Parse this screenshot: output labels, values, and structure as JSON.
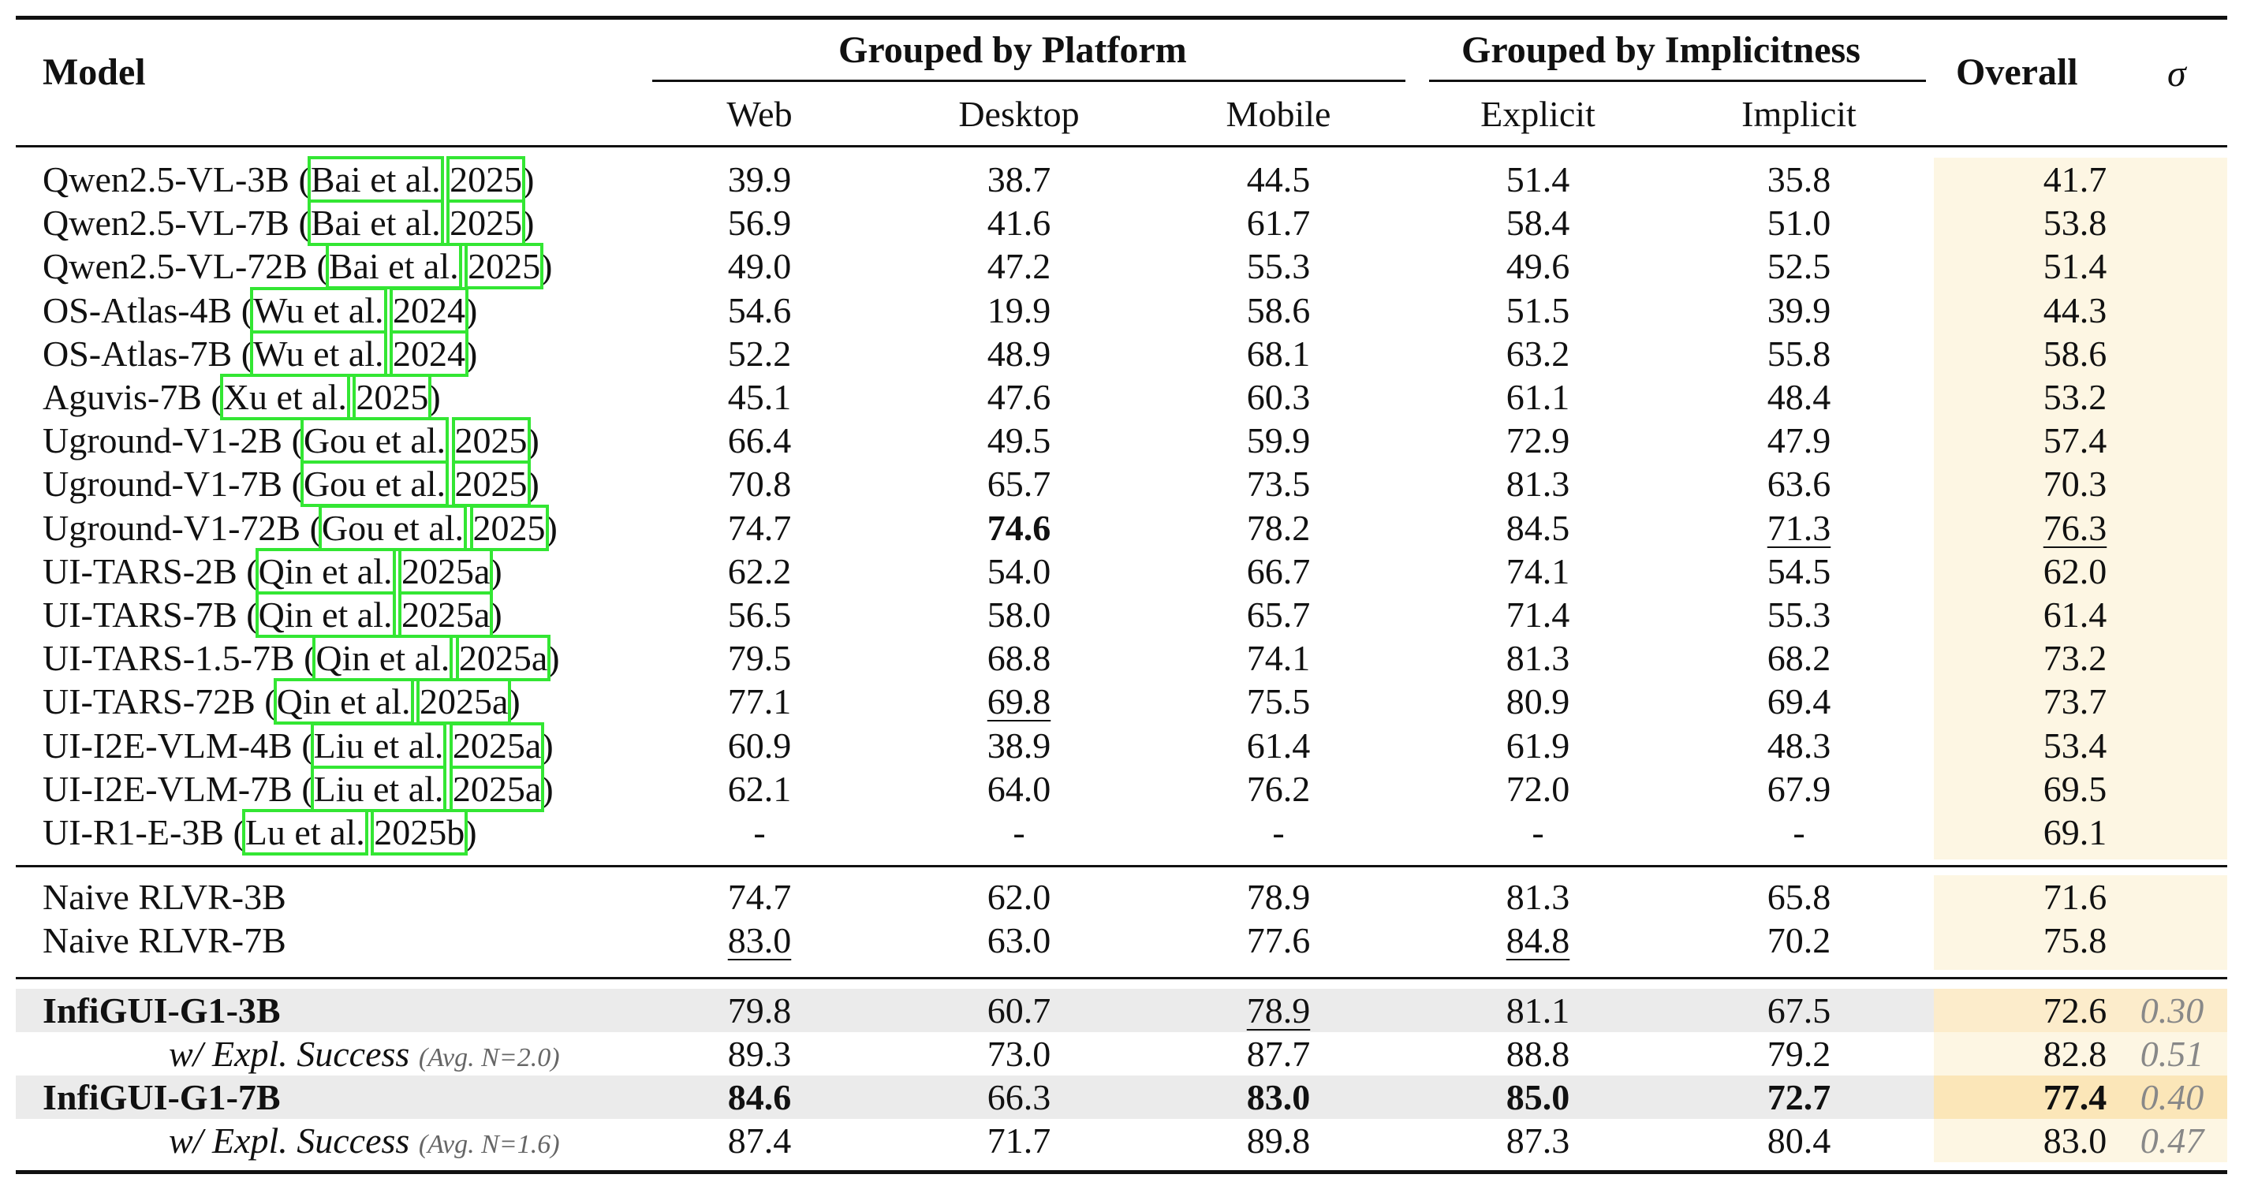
{
  "header": {
    "model": "Model",
    "group_platform": "Grouped by Platform",
    "group_implicitness": "Grouped by Implicitness",
    "overall": "Overall",
    "sigma": "σ",
    "sub": [
      "Web",
      "Desktop",
      "Mobile",
      "Explicit",
      "Implicit"
    ]
  },
  "baselines": [
    {
      "name": "Qwen2.5-VL-3B",
      "cite_author": "Bai et al.",
      "cite_year": "2025",
      "values": [
        "39.9",
        "38.7",
        "44.5",
        "51.4",
        "35.8",
        "41.7"
      ]
    },
    {
      "name": "Qwen2.5-VL-7B",
      "cite_author": "Bai et al.",
      "cite_year": "2025",
      "values": [
        "56.9",
        "41.6",
        "61.7",
        "58.4",
        "51.0",
        "53.8"
      ]
    },
    {
      "name": "Qwen2.5-VL-72B",
      "cite_author": "Bai et al.",
      "cite_year": "2025",
      "values": [
        "49.0",
        "47.2",
        "55.3",
        "49.6",
        "52.5",
        "51.4"
      ]
    },
    {
      "name": "OS-Atlas-4B",
      "cite_author": "Wu et al.",
      "cite_year": "2024",
      "values": [
        "54.6",
        "19.9",
        "58.6",
        "51.5",
        "39.9",
        "44.3"
      ]
    },
    {
      "name": "OS-Atlas-7B",
      "cite_author": "Wu et al.",
      "cite_year": "2024",
      "values": [
        "52.2",
        "48.9",
        "68.1",
        "63.2",
        "55.8",
        "58.6"
      ]
    },
    {
      "name": "Aguvis-7B",
      "cite_author": "Xu et al.",
      "cite_year": "2025",
      "values": [
        "45.1",
        "47.6",
        "60.3",
        "61.1",
        "48.4",
        "53.2"
      ]
    },
    {
      "name": "Uground-V1-2B",
      "cite_author": "Gou et al.",
      "cite_year": "2025",
      "values": [
        "66.4",
        "49.5",
        "59.9",
        "72.9",
        "47.9",
        "57.4"
      ]
    },
    {
      "name": "Uground-V1-7B",
      "cite_author": "Gou et al.",
      "cite_year": "2025",
      "values": [
        "70.8",
        "65.7",
        "73.5",
        "81.3",
        "63.6",
        "70.3"
      ]
    },
    {
      "name": "Uground-V1-72B",
      "cite_author": "Gou et al.",
      "cite_year": "2025",
      "values": [
        "74.7",
        "74.6",
        "78.2",
        "84.5",
        "71.3",
        "76.3"
      ]
    },
    {
      "name": "UI-TARS-2B",
      "cite_author": "Qin et al.",
      "cite_year": "2025a",
      "values": [
        "62.2",
        "54.0",
        "66.7",
        "74.1",
        "54.5",
        "62.0"
      ]
    },
    {
      "name": "UI-TARS-7B",
      "cite_author": "Qin et al.",
      "cite_year": "2025a",
      "values": [
        "56.5",
        "58.0",
        "65.7",
        "71.4",
        "55.3",
        "61.4"
      ]
    },
    {
      "name": "UI-TARS-1.5-7B",
      "cite_author": "Qin et al.",
      "cite_year": "2025a",
      "values": [
        "79.5",
        "68.8",
        "74.1",
        "81.3",
        "68.2",
        "73.2"
      ]
    },
    {
      "name": "UI-TARS-72B",
      "cite_author": "Qin et al.",
      "cite_year": "2025a",
      "values": [
        "77.1",
        "69.8",
        "75.5",
        "80.9",
        "69.4",
        "73.7"
      ]
    },
    {
      "name": "UI-I2E-VLM-4B",
      "cite_author": "Liu et al.",
      "cite_year": "2025a",
      "values": [
        "60.9",
        "38.9",
        "61.4",
        "61.9",
        "48.3",
        "53.4"
      ]
    },
    {
      "name": "UI-I2E-VLM-7B",
      "cite_author": "Liu et al.",
      "cite_year": "2025a",
      "values": [
        "62.1",
        "64.0",
        "76.2",
        "72.0",
        "67.9",
        "69.5"
      ]
    },
    {
      "name": "UI-R1-E-3B",
      "cite_author": "Lu et al.",
      "cite_year": "2025b",
      "values": [
        "-",
        "-",
        "-",
        "-",
        "-",
        "69.1"
      ]
    }
  ],
  "rlvr": [
    {
      "name": "Naive RLVR-3B",
      "values": [
        "74.7",
        "62.0",
        "78.9",
        "81.3",
        "65.8",
        "71.6"
      ]
    },
    {
      "name": "Naive RLVR-7B",
      "values": [
        "83.0",
        "63.0",
        "77.6",
        "84.8",
        "70.2",
        "75.8"
      ]
    }
  ],
  "ours": [
    {
      "name": "InfiGUI-G1-3B",
      "values": [
        "79.8",
        "60.7",
        "78.9",
        "81.1",
        "67.5",
        "72.6"
      ],
      "sigma": "0.30"
    },
    {
      "name": "w/ Expl. Success",
      "note": "(Avg. N=2.0)",
      "values": [
        "89.3",
        "73.0",
        "87.7",
        "88.8",
        "79.2",
        "82.8"
      ],
      "sigma": "0.51"
    },
    {
      "name": "InfiGUI-G1-7B",
      "values": [
        "84.6",
        "66.3",
        "83.0",
        "85.0",
        "72.7",
        "77.4"
      ],
      "sigma": "0.40"
    },
    {
      "name": "w/ Expl. Success",
      "note": "(Avg. N=1.6)",
      "values": [
        "87.4",
        "71.7",
        "89.8",
        "87.3",
        "80.4",
        "83.0"
      ],
      "sigma": "0.47"
    }
  ],
  "emphasis": {
    "bold": [
      "baselines.8.1",
      "ours.2.0",
      "ours.2.2",
      "ours.2.3",
      "ours.2.4",
      "ours.2.5"
    ],
    "underline": [
      "baselines.8.4",
      "baselines.8.5",
      "baselines.12.1",
      "rlvr.1.0",
      "rlvr.1.3",
      "ours.0.2"
    ]
  }
}
